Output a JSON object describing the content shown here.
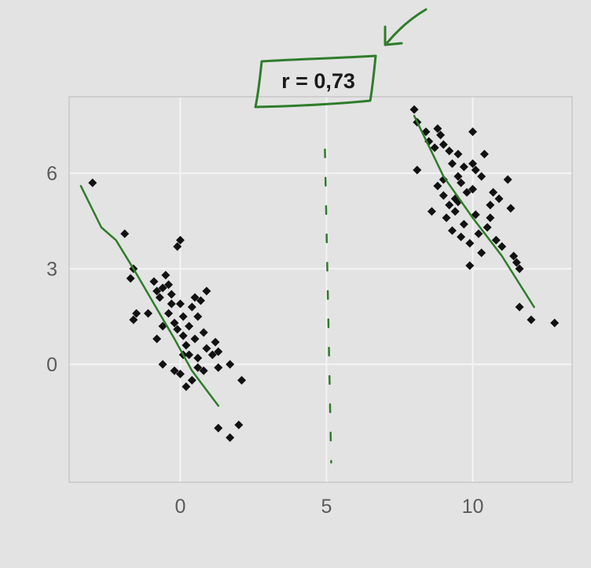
{
  "chart_data": {
    "type": "scatter",
    "xlim": [
      -3.8,
      13.4
    ],
    "ylim": [
      -3.7,
      8.4
    ],
    "x_ticks": [
      {
        "value": 0,
        "label": "0"
      },
      {
        "value": 5,
        "label": "5"
      },
      {
        "value": 10,
        "label": "10"
      }
    ],
    "y_ticks": [
      {
        "value": 0,
        "label": "0"
      },
      {
        "value": 3,
        "label": "3"
      },
      {
        "value": 6,
        "label": "6"
      }
    ],
    "grid": true,
    "series": [
      {
        "points": [
          [
            -3.0,
            5.7
          ],
          [
            -1.9,
            4.1
          ],
          [
            -1.6,
            3.0
          ],
          [
            -1.7,
            2.7
          ],
          [
            -1.5,
            1.6
          ],
          [
            -1.6,
            1.4
          ],
          [
            -1.1,
            1.6
          ],
          [
            -0.9,
            2.6
          ],
          [
            -0.8,
            2.3
          ],
          [
            -0.7,
            2.1
          ],
          [
            -0.6,
            2.4
          ],
          [
            -0.5,
            2.8
          ],
          [
            -0.4,
            2.5
          ],
          [
            -0.3,
            2.2
          ],
          [
            -0.6,
            1.2
          ],
          [
            -0.8,
            0.8
          ],
          [
            -0.6,
            0.0
          ],
          [
            -0.4,
            1.6
          ],
          [
            -0.3,
            1.9
          ],
          [
            -0.2,
            1.3
          ],
          [
            -0.1,
            3.7
          ],
          [
            0.0,
            3.9
          ],
          [
            0.0,
            1.9
          ],
          [
            0.1,
            1.5
          ],
          [
            0.1,
            0.9
          ],
          [
            -0.1,
            1.1
          ],
          [
            0.2,
            0.6
          ],
          [
            0.3,
            1.2
          ],
          [
            0.3,
            0.3
          ],
          [
            0.4,
            1.8
          ],
          [
            0.5,
            2.1
          ],
          [
            0.6,
            1.5
          ],
          [
            0.5,
            0.8
          ],
          [
            0.6,
            0.2
          ],
          [
            0.7,
            2.0
          ],
          [
            0.8,
            1.0
          ],
          [
            0.9,
            2.3
          ],
          [
            0.9,
            0.5
          ],
          [
            0.4,
            -0.5
          ],
          [
            0.2,
            -0.7
          ],
          [
            0.0,
            -0.3
          ],
          [
            0.8,
            -0.2
          ],
          [
            1.1,
            0.3
          ],
          [
            1.3,
            -0.1
          ],
          [
            1.2,
            0.7
          ],
          [
            1.3,
            0.4
          ],
          [
            -0.2,
            -0.2
          ],
          [
            0.6,
            -0.1
          ],
          [
            1.7,
            0.0
          ],
          [
            2.1,
            -0.5
          ],
          [
            1.3,
            -2.0
          ],
          [
            1.7,
            -2.3
          ],
          [
            2.0,
            -1.9
          ],
          [
            0.1,
            0.3
          ]
        ]
      },
      {
        "points": [
          [
            8.0,
            8.0
          ],
          [
            8.1,
            7.6
          ],
          [
            8.4,
            7.3
          ],
          [
            8.5,
            7.0
          ],
          [
            8.8,
            7.4
          ],
          [
            8.9,
            7.2
          ],
          [
            9.0,
            6.9
          ],
          [
            9.2,
            6.7
          ],
          [
            9.3,
            6.3
          ],
          [
            9.5,
            6.6
          ],
          [
            9.7,
            6.2
          ],
          [
            10.1,
            6.1
          ],
          [
            10.3,
            5.9
          ],
          [
            10.0,
            5.5
          ],
          [
            9.8,
            5.4
          ],
          [
            9.6,
            5.7
          ],
          [
            9.4,
            5.2
          ],
          [
            9.2,
            5.0
          ],
          [
            9.0,
            5.3
          ],
          [
            8.8,
            5.6
          ],
          [
            8.6,
            4.8
          ],
          [
            9.1,
            4.6
          ],
          [
            9.3,
            4.2
          ],
          [
            9.6,
            4.0
          ],
          [
            9.9,
            3.8
          ],
          [
            10.2,
            4.1
          ],
          [
            10.5,
            4.3
          ],
          [
            10.8,
            3.9
          ],
          [
            11.0,
            3.7
          ],
          [
            10.6,
            5.0
          ],
          [
            10.9,
            5.2
          ],
          [
            11.2,
            5.8
          ],
          [
            11.3,
            4.9
          ],
          [
            10.4,
            6.6
          ],
          [
            10.0,
            7.3
          ],
          [
            8.1,
            6.1
          ],
          [
            9.9,
            3.1
          ],
          [
            11.4,
            3.4
          ],
          [
            11.6,
            3.0
          ],
          [
            11.5,
            3.2
          ],
          [
            11.6,
            1.8
          ],
          [
            12.0,
            1.4
          ],
          [
            12.8,
            1.3
          ],
          [
            9.5,
            5.9
          ],
          [
            10.7,
            5.4
          ],
          [
            10.1,
            4.7
          ],
          [
            9.7,
            4.4
          ],
          [
            9.4,
            4.8
          ],
          [
            10.3,
            3.5
          ],
          [
            9.0,
            5.8
          ],
          [
            10.0,
            6.3
          ],
          [
            8.7,
            6.8
          ],
          [
            9.5,
            5.1
          ],
          [
            10.6,
            4.6
          ]
        ]
      }
    ],
    "fit_lines": [
      {
        "points": [
          [
            -3.4,
            5.6
          ],
          [
            -2.7,
            4.3
          ],
          [
            -2.2,
            3.9
          ],
          [
            -1.6,
            3.0
          ],
          [
            -0.9,
            1.9
          ],
          [
            -0.2,
            0.8
          ],
          [
            0.4,
            -0.2
          ],
          [
            1.3,
            -1.3
          ]
        ]
      },
      {
        "points": [
          [
            8.0,
            7.8
          ],
          [
            9.0,
            5.9
          ],
          [
            10.0,
            4.6
          ],
          [
            11.0,
            3.4
          ],
          [
            12.1,
            1.8
          ]
        ]
      }
    ],
    "annotations": {
      "r_text": "r = 0,73",
      "divider_x": 5
    }
  },
  "colors": {
    "panel": "#e3e3e3",
    "grid": "#f4f4f4",
    "point": "#111111",
    "ink": "#2f7d2a"
  }
}
